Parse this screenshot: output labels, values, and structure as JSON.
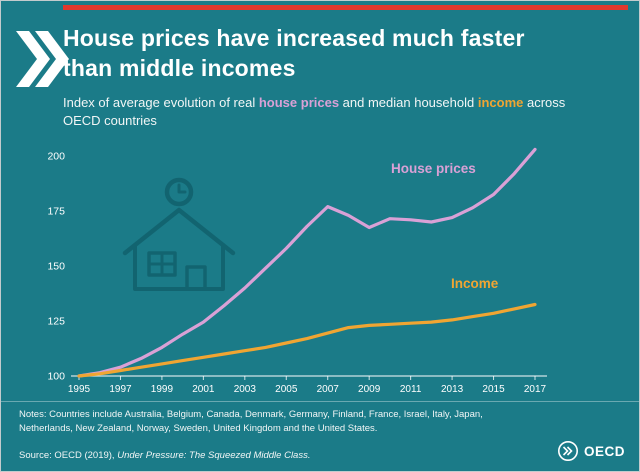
{
  "colors": {
    "background": "#1b7b88",
    "accent_red": "#e2382d",
    "house_prices": "#d9a1d6",
    "income": "#f0a532",
    "text": "#ffffff"
  },
  "header": {
    "title": "House prices have increased much faster than middle incomes"
  },
  "subtitle": {
    "part1": "Index of average evolution of real ",
    "house_prices": "house prices",
    "part2": " and median household ",
    "income": "income",
    "part3": " across OECD countries"
  },
  "chart_data": {
    "type": "line",
    "title": "Index of average evolution of real house prices and median household income across OECD countries",
    "xlabel": "",
    "ylabel": "",
    "x": [
      1995,
      1996,
      1997,
      1998,
      1999,
      2000,
      2001,
      2002,
      2003,
      2004,
      2005,
      2006,
      2007,
      2008,
      2009,
      2010,
      2011,
      2012,
      2013,
      2014,
      2015,
      2016,
      2017
    ],
    "x_tick_labels": [
      "1995",
      "1997",
      "1999",
      "2001",
      "2003",
      "2005",
      "2007",
      "2009",
      "2011",
      "2013",
      "2015",
      "2017"
    ],
    "y_ticks": [
      100,
      125,
      150,
      175,
      200
    ],
    "ylim": [
      100,
      205
    ],
    "grid": false,
    "legend": "inline-labels",
    "series": [
      {
        "name": "House prices",
        "color": "#d9a1d6",
        "values": [
          100,
          101.5,
          104,
          108,
          113,
          119,
          124.5,
          132,
          140,
          149,
          158,
          168,
          177,
          173,
          167.5,
          171.5,
          171,
          170,
          172,
          176.5,
          182.5,
          192,
          203
        ]
      },
      {
        "name": "Income",
        "color": "#f0a532",
        "values": [
          100,
          101,
          102.5,
          104,
          105.5,
          107,
          108.5,
          110,
          111.5,
          113,
          115,
          117,
          119.5,
          122,
          123,
          123.5,
          124,
          124.5,
          125.5,
          127,
          128.5,
          130.5,
          132.5
        ]
      }
    ]
  },
  "notes": "Notes: Countries include Australia, Belgium, Canada, Denmark, Germany, Finland, France, Israel, Italy, Japan, Netherlands, New Zealand, Norway, Sweden, United Kingdom and the United States.",
  "source": {
    "prefix": "Source: OECD (2019), ",
    "publication": "Under Pressure: The Squeezed Middle Class."
  },
  "logo": {
    "text": "OECD"
  }
}
